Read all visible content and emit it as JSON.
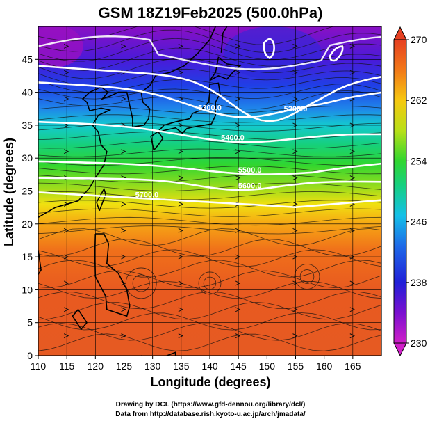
{
  "title": "GSM 18Z19Feb2025 (500.0hPa)",
  "xlabel": "Longitude (degrees)",
  "ylabel": "Latitude  (degrees)",
  "x_ticks": [
    110,
    115,
    120,
    125,
    130,
    135,
    140,
    145,
    150,
    155,
    160,
    165
  ],
  "y_ticks": [
    0,
    5,
    10,
    15,
    20,
    25,
    30,
    35,
    40,
    45
  ],
  "colorbar_ticks": [
    230,
    238,
    246,
    254,
    262,
    270
  ],
  "contour_labels": [
    "5300.0",
    "5200.0",
    "5400.0",
    "5500.0",
    "5700.0",
    "5600.0"
  ],
  "credits": {
    "line1": "Drawing by DCL (https://www.gfd-dennou.org/library/dcl/)",
    "line2": "Data from http://database.rish.kyoto-u.ac.jp/arch/jmadata/"
  },
  "map": {
    "lon_range": [
      110,
      170
    ],
    "lat_range": [
      0,
      50
    ],
    "field": "temperature (K)",
    "field_range": [
      230,
      270
    ],
    "grid": true,
    "streamlines": true
  }
}
